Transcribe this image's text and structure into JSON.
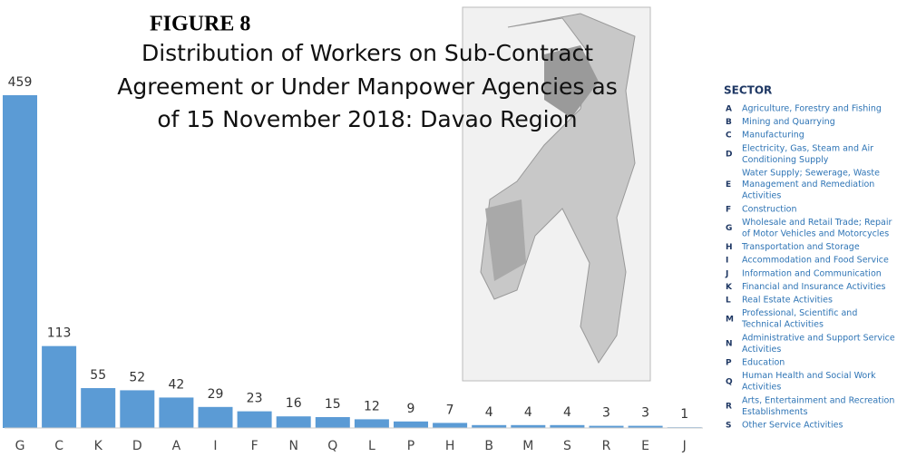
{
  "chart_data": {
    "type": "bar",
    "figure": "FIGURE 8",
    "title": [
      "Distribution of Workers on Sub-Contract",
      "Agreement or Under Manpower Agencies as",
      "of 15 November 2018:  Davao Region"
    ],
    "categories": [
      "G",
      "C",
      "K",
      "D",
      "A",
      "I",
      "F",
      "N",
      "Q",
      "L",
      "P",
      "H",
      "B",
      "M",
      "S",
      "R",
      "E",
      "J"
    ],
    "values": [
      459,
      113,
      55,
      52,
      42,
      29,
      23,
      16,
      15,
      12,
      9,
      7,
      4,
      4,
      4,
      3,
      3,
      1
    ],
    "color": "#5b9bd5",
    "legend": {
      "title": "SECTOR",
      "items": [
        {
          "letter": "A",
          "lines": [
            "Agriculture, Forestry and Fishing"
          ]
        },
        {
          "letter": "B",
          "lines": [
            "Mining and Quarrying"
          ]
        },
        {
          "letter": "C",
          "lines": [
            "Manufacturing"
          ]
        },
        {
          "letter": "D",
          "lines": [
            "Electricity, Gas, Steam and Air",
            "Conditioning Supply"
          ]
        },
        {
          "letter": "E",
          "lines": [
            "Water Supply; Sewerage, Waste",
            "Management and Remediation",
            "Activities"
          ]
        },
        {
          "letter": "F",
          "lines": [
            "Construction"
          ]
        },
        {
          "letter": "G",
          "lines": [
            "Wholesale and Retail Trade; Repair",
            "of Motor Vehicles and Motorcycles"
          ]
        },
        {
          "letter": "H",
          "lines": [
            "Transportation and Storage"
          ]
        },
        {
          "letter": "I",
          "lines": [
            "Accommodation and Food Service"
          ]
        },
        {
          "letter": "J",
          "lines": [
            "Information and Communication"
          ]
        },
        {
          "letter": "K",
          "lines": [
            "Financial and Insurance Activities"
          ]
        },
        {
          "letter": "L",
          "lines": [
            "Real Estate Activities"
          ]
        },
        {
          "letter": "M",
          "lines": [
            "Professional, Scientific and",
            "Technical Activities"
          ]
        },
        {
          "letter": "N",
          "lines": [
            "Administrative and Support Service",
            "Activities"
          ]
        },
        {
          "letter": "P",
          "lines": [
            "Education"
          ]
        },
        {
          "letter": "Q",
          "lines": [
            "Human Health and Social Work",
            "Activities"
          ]
        },
        {
          "letter": "R",
          "lines": [
            "Arts, Entertainment and Recreation",
            "Establishments"
          ]
        },
        {
          "letter": "S",
          "lines": [
            "Other Service Activities"
          ]
        }
      ]
    }
  }
}
